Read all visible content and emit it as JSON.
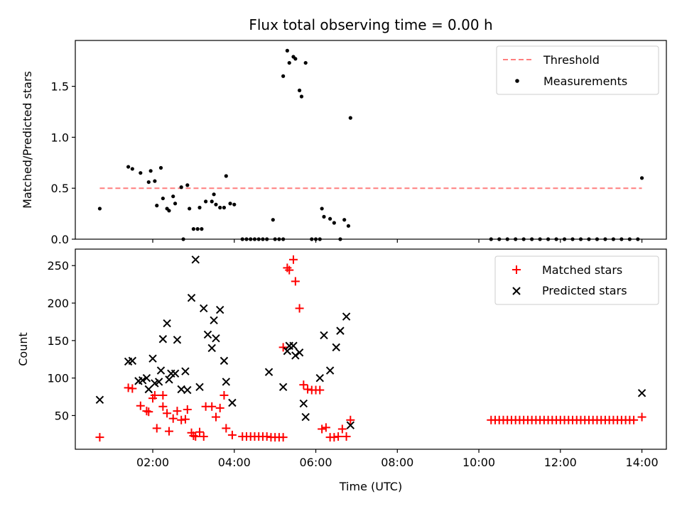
{
  "chart_data": [
    {
      "type": "scatter",
      "title": "Flux total observing time = 0.00 h",
      "ylabel": "Matched/Predicted stars",
      "xlabel": "",
      "xlim": [
        0.1,
        14.6
      ],
      "ylim": [
        0,
        1.95
      ],
      "yticks": [
        "0.0",
        "0.5",
        "1.0",
        "1.5"
      ],
      "xticks": [
        "02:00",
        "04:00",
        "06:00",
        "08:00",
        "10:00",
        "12:00",
        "14:00"
      ],
      "legend_position": "top-right",
      "legend": [
        "Threshold",
        "Measurements"
      ],
      "threshold": {
        "name": "Threshold",
        "x": [
          0.7,
          14.0
        ],
        "y": 0.5,
        "color": "#ff7f7f"
      },
      "series": [
        {
          "name": "Measurements",
          "color": "#000000",
          "points": [
            [
              0.7,
              0.3
            ],
            [
              1.4,
              0.71
            ],
            [
              1.5,
              0.69
            ],
            [
              1.7,
              0.65
            ],
            [
              1.9,
              0.56
            ],
            [
              1.95,
              0.67
            ],
            [
              2.05,
              0.57
            ],
            [
              2.1,
              0.33
            ],
            [
              2.2,
              0.7
            ],
            [
              2.25,
              0.4
            ],
            [
              2.35,
              0.3
            ],
            [
              2.4,
              0.28
            ],
            [
              2.5,
              0.42
            ],
            [
              2.55,
              0.35
            ],
            [
              2.7,
              0.51
            ],
            [
              2.75,
              0.0
            ],
            [
              2.85,
              0.53
            ],
            [
              2.9,
              0.3
            ],
            [
              3.0,
              0.1
            ],
            [
              3.1,
              0.1
            ],
            [
              3.15,
              0.31
            ],
            [
              3.2,
              0.1
            ],
            [
              3.3,
              0.37
            ],
            [
              3.45,
              0.37
            ],
            [
              3.5,
              0.44
            ],
            [
              3.55,
              0.34
            ],
            [
              3.65,
              0.31
            ],
            [
              3.75,
              0.31
            ],
            [
              3.8,
              0.62
            ],
            [
              3.9,
              0.35
            ],
            [
              4.0,
              0.34
            ],
            [
              4.2,
              0.0
            ],
            [
              4.3,
              0.0
            ],
            [
              4.4,
              0.0
            ],
            [
              4.5,
              0.0
            ],
            [
              4.6,
              0.0
            ],
            [
              4.7,
              0.0
            ],
            [
              4.8,
              0.0
            ],
            [
              4.95,
              0.19
            ],
            [
              5.0,
              0.0
            ],
            [
              5.1,
              0.0
            ],
            [
              5.2,
              0.0
            ],
            [
              5.2,
              1.6
            ],
            [
              5.3,
              1.85
            ],
            [
              5.35,
              1.73
            ],
            [
              5.45,
              1.79
            ],
            [
              5.5,
              1.77
            ],
            [
              5.6,
              1.46
            ],
            [
              5.65,
              1.4
            ],
            [
              5.75,
              1.73
            ],
            [
              5.9,
              0.0
            ],
            [
              6.0,
              0.0
            ],
            [
              6.1,
              0.0
            ],
            [
              6.15,
              0.3
            ],
            [
              6.2,
              0.22
            ],
            [
              6.35,
              0.2
            ],
            [
              6.45,
              0.16
            ],
            [
              6.6,
              0.0
            ],
            [
              6.7,
              0.19
            ],
            [
              6.8,
              0.13
            ],
            [
              6.85,
              1.19
            ],
            [
              10.3,
              0.0
            ],
            [
              10.5,
              0.0
            ],
            [
              10.7,
              0.0
            ],
            [
              10.9,
              0.0
            ],
            [
              11.1,
              0.0
            ],
            [
              11.3,
              0.0
            ],
            [
              11.5,
              0.0
            ],
            [
              11.7,
              0.0
            ],
            [
              11.9,
              0.0
            ],
            [
              12.1,
              0.0
            ],
            [
              12.3,
              0.0
            ],
            [
              12.5,
              0.0
            ],
            [
              12.7,
              0.0
            ],
            [
              12.9,
              0.0
            ],
            [
              13.1,
              0.0
            ],
            [
              13.3,
              0.0
            ],
            [
              13.5,
              0.0
            ],
            [
              13.7,
              0.0
            ],
            [
              13.9,
              0.0
            ],
            [
              14.0,
              0.6
            ]
          ]
        }
      ]
    },
    {
      "type": "scatter",
      "title": "",
      "ylabel": "Count",
      "xlabel": "Time (UTC)",
      "xlim": [
        0.1,
        14.6
      ],
      "ylim": [
        5,
        272
      ],
      "yticks": [
        "50",
        "100",
        "150",
        "200",
        "250"
      ],
      "xticks": [
        "02:00",
        "04:00",
        "06:00",
        "08:00",
        "10:00",
        "12:00",
        "14:00"
      ],
      "legend_position": "top-right",
      "legend": [
        "Matched stars",
        "Predicted stars"
      ],
      "series": [
        {
          "name": "Matched stars",
          "marker": "plus",
          "color": "#ff0000",
          "points": [
            [
              0.7,
              21
            ],
            [
              1.4,
              87
            ],
            [
              1.5,
              86
            ],
            [
              1.7,
              63
            ],
            [
              1.85,
              56
            ],
            [
              1.9,
              55
            ],
            [
              2.0,
              73
            ],
            [
              2.05,
              77
            ],
            [
              2.1,
              33
            ],
            [
              2.25,
              77
            ],
            [
              2.25,
              62
            ],
            [
              2.35,
              53
            ],
            [
              2.4,
              29
            ],
            [
              2.5,
              46
            ],
            [
              2.6,
              56
            ],
            [
              2.7,
              44
            ],
            [
              2.8,
              45
            ],
            [
              2.85,
              58
            ],
            [
              2.95,
              27
            ],
            [
              3.0,
              23
            ],
            [
              3.05,
              22
            ],
            [
              3.15,
              28
            ],
            [
              3.25,
              22
            ],
            [
              3.3,
              62
            ],
            [
              3.45,
              62
            ],
            [
              3.55,
              48
            ],
            [
              3.65,
              60
            ],
            [
              3.75,
              77
            ],
            [
              3.8,
              33
            ],
            [
              3.95,
              24
            ],
            [
              4.2,
              22
            ],
            [
              4.3,
              22
            ],
            [
              4.4,
              22
            ],
            [
              4.5,
              22
            ],
            [
              4.6,
              22
            ],
            [
              4.7,
              22
            ],
            [
              4.8,
              22
            ],
            [
              4.9,
              21
            ],
            [
              5.0,
              21
            ],
            [
              5.1,
              21
            ],
            [
              5.2,
              21
            ],
            [
              5.2,
              141
            ],
            [
              5.3,
              247
            ],
            [
              5.35,
              244
            ],
            [
              5.45,
              258
            ],
            [
              5.5,
              229
            ],
            [
              5.6,
              193
            ],
            [
              5.7,
              91
            ],
            [
              5.8,
              85
            ],
            [
              5.9,
              84
            ],
            [
              6.0,
              84
            ],
            [
              6.1,
              84
            ],
            [
              6.15,
              32
            ],
            [
              6.25,
              34
            ],
            [
              6.35,
              21
            ],
            [
              6.45,
              21
            ],
            [
              6.55,
              22
            ],
            [
              6.65,
              32
            ],
            [
              6.75,
              22
            ],
            [
              6.85,
              44
            ],
            [
              10.3,
              44
            ],
            [
              10.4,
              44
            ],
            [
              10.5,
              44
            ],
            [
              10.6,
              44
            ],
            [
              10.7,
              44
            ],
            [
              10.8,
              44
            ],
            [
              10.9,
              44
            ],
            [
              11.0,
              44
            ],
            [
              11.1,
              44
            ],
            [
              11.2,
              44
            ],
            [
              11.3,
              44
            ],
            [
              11.4,
              44
            ],
            [
              11.5,
              44
            ],
            [
              11.6,
              44
            ],
            [
              11.7,
              44
            ],
            [
              11.8,
              44
            ],
            [
              11.9,
              44
            ],
            [
              12.0,
              44
            ],
            [
              12.1,
              44
            ],
            [
              12.2,
              44
            ],
            [
              12.3,
              44
            ],
            [
              12.4,
              44
            ],
            [
              12.5,
              44
            ],
            [
              12.6,
              44
            ],
            [
              12.7,
              44
            ],
            [
              12.8,
              44
            ],
            [
              12.9,
              44
            ],
            [
              13.0,
              44
            ],
            [
              13.1,
              44
            ],
            [
              13.2,
              44
            ],
            [
              13.3,
              44
            ],
            [
              13.4,
              44
            ],
            [
              13.5,
              44
            ],
            [
              13.6,
              44
            ],
            [
              13.7,
              44
            ],
            [
              13.8,
              44
            ],
            [
              14.0,
              48
            ]
          ]
        },
        {
          "name": "Predicted stars",
          "marker": "x",
          "color": "#000000",
          "points": [
            [
              0.7,
              71
            ],
            [
              1.4,
              122
            ],
            [
              1.5,
              123
            ],
            [
              1.65,
              96
            ],
            [
              1.75,
              97
            ],
            [
              1.85,
              100
            ],
            [
              1.9,
              85
            ],
            [
              2.0,
              126
            ],
            [
              2.05,
              93
            ],
            [
              2.15,
              95
            ],
            [
              2.2,
              110
            ],
            [
              2.25,
              152
            ],
            [
              2.35,
              173
            ],
            [
              2.4,
              98
            ],
            [
              2.45,
              106
            ],
            [
              2.55,
              106
            ],
            [
              2.6,
              151
            ],
            [
              2.7,
              85
            ],
            [
              2.8,
              109
            ],
            [
              2.85,
              84
            ],
            [
              2.95,
              207
            ],
            [
              3.05,
              258
            ],
            [
              3.15,
              88
            ],
            [
              3.25,
              193
            ],
            [
              3.35,
              158
            ],
            [
              3.45,
              140
            ],
            [
              3.5,
              177
            ],
            [
              3.55,
              153
            ],
            [
              3.65,
              191
            ],
            [
              3.75,
              123
            ],
            [
              3.8,
              95
            ],
            [
              3.95,
              67
            ],
            [
              4.85,
              108
            ],
            [
              5.2,
              88
            ],
            [
              5.3,
              136
            ],
            [
              5.35,
              143
            ],
            [
              5.45,
              143
            ],
            [
              5.5,
              130
            ],
            [
              5.6,
              134
            ],
            [
              5.7,
              66
            ],
            [
              5.75,
              48
            ],
            [
              6.1,
              100
            ],
            [
              6.2,
              157
            ],
            [
              6.35,
              110
            ],
            [
              6.5,
              141
            ],
            [
              6.6,
              163
            ],
            [
              6.75,
              182
            ],
            [
              6.85,
              37
            ],
            [
              14.0,
              80
            ]
          ]
        }
      ]
    }
  ]
}
